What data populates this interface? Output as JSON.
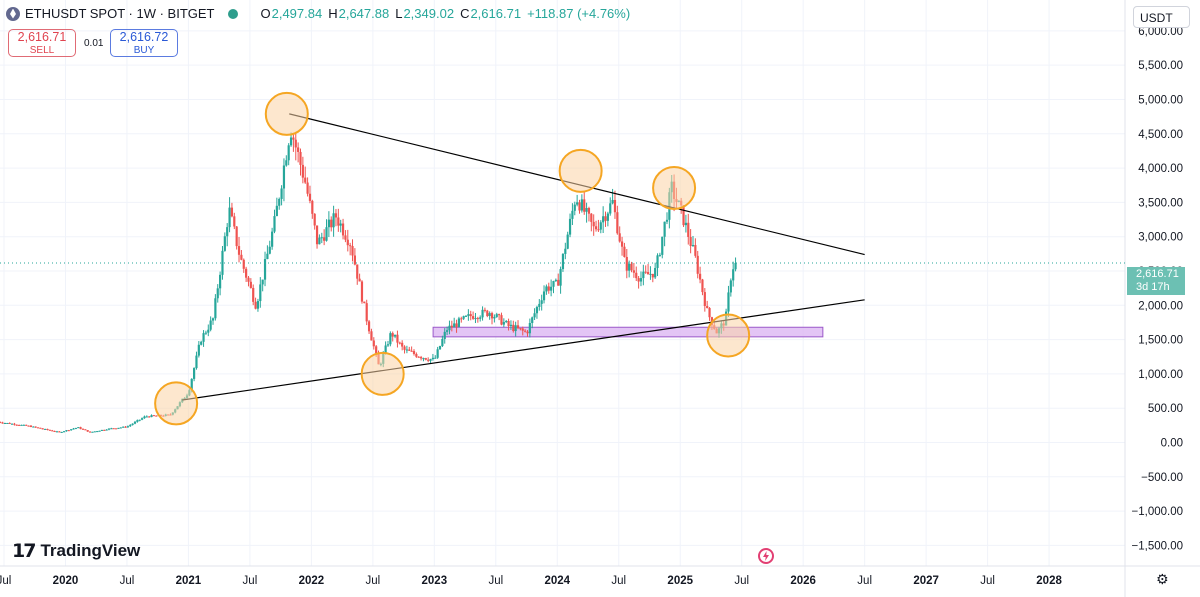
{
  "header": {
    "symbol": "ETHUSDT SPOT · 1W · BITGET",
    "open_label": "O",
    "open": "2,497.84",
    "high_label": "H",
    "high": "2,647.88",
    "low_label": "L",
    "low": "2,349.02",
    "close_label": "C",
    "close": "2,616.71",
    "change": "+118.87 (+4.76%)"
  },
  "trade": {
    "sell_price": "2,616.71",
    "sell_label": "SELL",
    "spread": "0.01",
    "buy_price": "2,616.72",
    "buy_label": "BUY"
  },
  "currency": "USDT",
  "logo_text": "TradingView",
  "last_price_tag": {
    "price": "2,616.71",
    "countdown": "3d 17h"
  },
  "colors": {
    "up": "#26a69a",
    "down": "#ef5350",
    "zone": "#d4a5ef",
    "circle": "#f5a623",
    "line": "#000000"
  },
  "icons": [
    "eth-logo-icon",
    "eye-icon",
    "lightning-icon",
    "gear-icon"
  ],
  "chart_data": {
    "type": "candlestick",
    "timeframe": "1W",
    "ylim": [
      -1800,
      6450
    ],
    "xlim": [
      2019.5,
      2028.65
    ],
    "y_ticks": [
      {
        "v": 6000,
        "label": "6,000.00"
      },
      {
        "v": 5500,
        "label": "5,500.00"
      },
      {
        "v": 5000,
        "label": "5,000.00"
      },
      {
        "v": 4500,
        "label": "4,500.00"
      },
      {
        "v": 4000,
        "label": "4,000.00"
      },
      {
        "v": 3500,
        "label": "3,500.00"
      },
      {
        "v": 3000,
        "label": "3,000.00"
      },
      {
        "v": 2500,
        "label": "2,500.00"
      },
      {
        "v": 2000,
        "label": "2,000.00"
      },
      {
        "v": 1500,
        "label": "1,500.00"
      },
      {
        "v": 1000,
        "label": "1,000.00"
      },
      {
        "v": 500,
        "label": "500.00"
      },
      {
        "v": 0,
        "label": "0.00"
      },
      {
        "v": -500,
        "label": "−500.00"
      },
      {
        "v": -1000,
        "label": "−1,000.00"
      },
      {
        "v": -1500,
        "label": "−1,500.00"
      }
    ],
    "x_ticks": [
      {
        "t": 2019.5,
        "label": "Jul",
        "bold": false
      },
      {
        "t": 2020.0,
        "label": "2020",
        "bold": true
      },
      {
        "t": 2020.5,
        "label": "Jul",
        "bold": false
      },
      {
        "t": 2021.0,
        "label": "2021",
        "bold": true
      },
      {
        "t": 2021.5,
        "label": "Jul",
        "bold": false
      },
      {
        "t": 2022.0,
        "label": "2022",
        "bold": true
      },
      {
        "t": 2022.5,
        "label": "Jul",
        "bold": false
      },
      {
        "t": 2023.0,
        "label": "2023",
        "bold": true
      },
      {
        "t": 2023.5,
        "label": "Jul",
        "bold": false
      },
      {
        "t": 2024.0,
        "label": "2024",
        "bold": true
      },
      {
        "t": 2024.5,
        "label": "Jul",
        "bold": false
      },
      {
        "t": 2025.0,
        "label": "2025",
        "bold": true
      },
      {
        "t": 2025.5,
        "label": "Jul",
        "bold": false
      },
      {
        "t": 2026.0,
        "label": "2026",
        "bold": true
      },
      {
        "t": 2026.5,
        "label": "Jul",
        "bold": false
      },
      {
        "t": 2027.0,
        "label": "2027",
        "bold": true
      },
      {
        "t": 2027.5,
        "label": "Jul",
        "bold": false
      },
      {
        "t": 2028.0,
        "label": "2028",
        "bold": true
      }
    ],
    "price_path": [
      [
        2019.45,
        300
      ],
      [
        2019.7,
        240
      ],
      [
        2019.95,
        150
      ],
      [
        2020.1,
        220
      ],
      [
        2020.2,
        150
      ],
      [
        2020.35,
        200
      ],
      [
        2020.5,
        230
      ],
      [
        2020.65,
        380
      ],
      [
        2020.85,
        400
      ],
      [
        2021.0,
        730
      ],
      [
        2021.1,
        1500
      ],
      [
        2021.2,
        1800
      ],
      [
        2021.33,
        3400
      ],
      [
        2021.42,
        2700
      ],
      [
        2021.55,
        2000
      ],
      [
        2021.7,
        3200
      ],
      [
        2021.83,
        4600
      ],
      [
        2021.95,
        3800
      ],
      [
        2022.05,
        2900
      ],
      [
        2022.2,
        3300
      ],
      [
        2022.32,
        2900
      ],
      [
        2022.45,
        1800
      ],
      [
        2022.55,
        1100
      ],
      [
        2022.65,
        1600
      ],
      [
        2022.75,
        1350
      ],
      [
        2022.9,
        1250
      ],
      [
        2023.0,
        1200
      ],
      [
        2023.1,
        1650
      ],
      [
        2023.3,
        1850
      ],
      [
        2023.45,
        1900
      ],
      [
        2023.6,
        1700
      ],
      [
        2023.75,
        1600
      ],
      [
        2023.9,
        2250
      ],
      [
        2024.0,
        2300
      ],
      [
        2024.15,
        3600
      ],
      [
        2024.3,
        3100
      ],
      [
        2024.45,
        3500
      ],
      [
        2024.55,
        2600
      ],
      [
        2024.68,
        2400
      ],
      [
        2024.8,
        2500
      ],
      [
        2024.93,
        3700
      ],
      [
        2025.02,
        3300
      ],
      [
        2025.12,
        2700
      ],
      [
        2025.22,
        1900
      ],
      [
        2025.3,
        1600
      ],
      [
        2025.37,
        1800
      ],
      [
        2025.42,
        2550
      ],
      [
        2025.46,
        2616.71
      ]
    ],
    "annotations": {
      "descending_trendline": {
        "from": [
          2021.82,
          4790
        ],
        "to": [
          2026.5,
          2740
        ]
      },
      "ascending_trendline": {
        "from": [
          2020.95,
          620
        ],
        "to": [
          2026.5,
          2080
        ]
      },
      "support_zone": {
        "t_start": 2022.99,
        "t_end": 2026.16,
        "y_low": 1540,
        "y_high": 1680
      },
      "highlighted_points": [
        {
          "t": 2020.9,
          "y": 570
        },
        {
          "t": 2021.8,
          "y": 4790
        },
        {
          "t": 2022.58,
          "y": 1000
        },
        {
          "t": 2024.19,
          "y": 3960
        },
        {
          "t": 2024.95,
          "y": 3710
        },
        {
          "t": 2025.39,
          "y": 1560
        }
      ]
    },
    "last_price": 2616.71
  }
}
